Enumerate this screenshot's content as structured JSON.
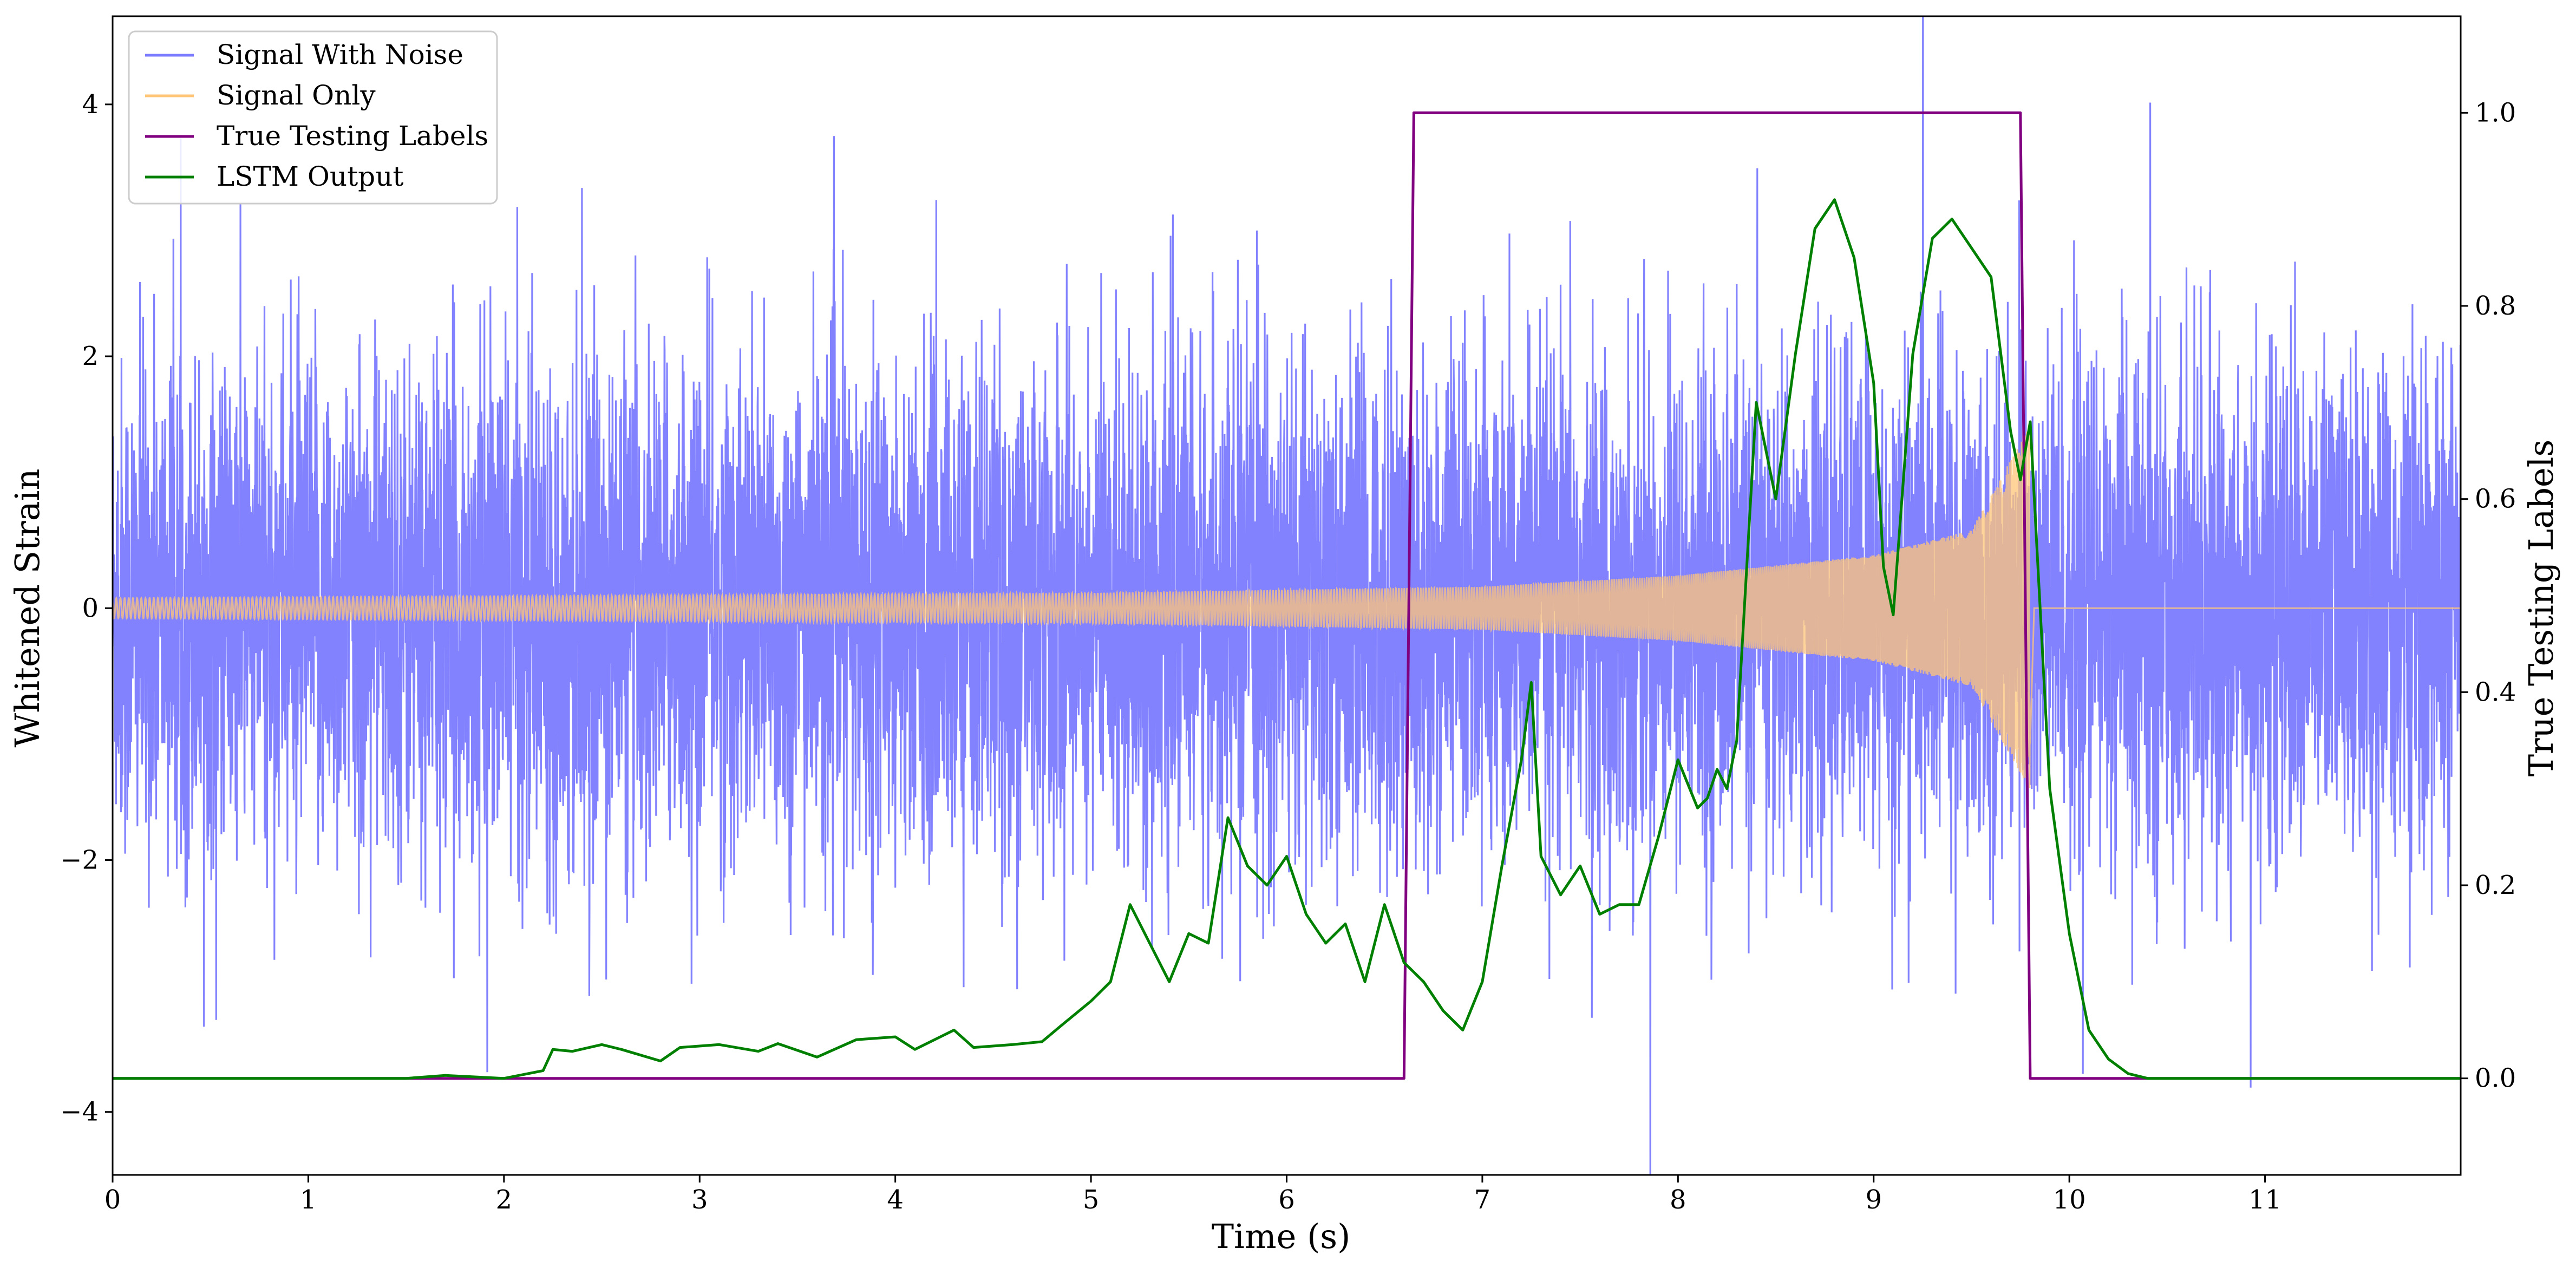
{
  "chart_data": {
    "type": "line",
    "xlabel": "Time (s)",
    "ylabel": "Whitened Strain",
    "y2label": "True Testing Labels",
    "xlim": [
      0,
      12
    ],
    "ylim": [
      -4.5,
      4.7
    ],
    "y2lim": [
      -0.1,
      1.1
    ],
    "x_ticks": [
      0,
      1,
      2,
      3,
      4,
      5,
      6,
      7,
      8,
      9,
      10,
      11
    ],
    "y_ticks": [
      -4,
      -2,
      0,
      2,
      4
    ],
    "y_tick_labels": [
      "−4",
      "−2",
      "0",
      "2",
      "4"
    ],
    "y2_ticks": [
      0.0,
      0.2,
      0.4,
      0.6,
      0.8,
      1.0
    ],
    "y2_tick_labels": [
      "0.0",
      "0.2",
      "0.4",
      "0.6",
      "0.8",
      "1.0"
    ],
    "grid": false,
    "legend_position": "top-left",
    "series": [
      {
        "name": "Signal With Noise",
        "axis": "left",
        "color": "#7b7bff",
        "kind": "noise",
        "std": 1.0,
        "x_range": [
          0,
          12
        ]
      },
      {
        "name": "Signal Only",
        "axis": "left",
        "color": "#ffc678",
        "kind": "chirp",
        "amplitude_envelope": [
          [
            0,
            0.08
          ],
          [
            5,
            0.12
          ],
          [
            7,
            0.17
          ],
          [
            8,
            0.26
          ],
          [
            9,
            0.42
          ],
          [
            9.5,
            0.62
          ],
          [
            9.8,
            1.45
          ],
          [
            9.82,
            0.0
          ],
          [
            12,
            0.0
          ]
        ]
      },
      {
        "name": "True Testing Labels",
        "axis": "right",
        "color": "#800080",
        "x": [
          0,
          6.6,
          6.65,
          9.75,
          9.8,
          12
        ],
        "y": [
          0,
          0,
          1,
          1,
          0,
          0
        ]
      },
      {
        "name": "LSTM Output",
        "axis": "right",
        "color": "#008000",
        "x": [
          0,
          1.0,
          1.5,
          1.7,
          2.0,
          2.2,
          2.25,
          2.35,
          2.5,
          2.6,
          2.8,
          2.9,
          3.1,
          3.3,
          3.4,
          3.6,
          3.8,
          4.0,
          4.1,
          4.3,
          4.4,
          4.6,
          4.75,
          4.85,
          5.0,
          5.1,
          5.2,
          5.3,
          5.4,
          5.5,
          5.6,
          5.7,
          5.8,
          5.9,
          6.0,
          6.1,
          6.2,
          6.3,
          6.4,
          6.5,
          6.6,
          6.7,
          6.8,
          6.9,
          7.0,
          7.1,
          7.2,
          7.25,
          7.3,
          7.4,
          7.5,
          7.6,
          7.7,
          7.8,
          7.9,
          8.0,
          8.1,
          8.15,
          8.2,
          8.25,
          8.3,
          8.4,
          8.5,
          8.6,
          8.7,
          8.8,
          8.9,
          9.0,
          9.05,
          9.1,
          9.2,
          9.3,
          9.4,
          9.5,
          9.6,
          9.7,
          9.75,
          9.8,
          9.9,
          10.0,
          10.1,
          10.2,
          10.3,
          10.4,
          10.5,
          11.0,
          12.0
        ],
        "y": [
          0.0,
          0.0,
          0.0,
          0.003,
          0.0,
          0.008,
          0.03,
          0.028,
          0.035,
          0.03,
          0.018,
          0.032,
          0.035,
          0.028,
          0.036,
          0.022,
          0.04,
          0.043,
          0.03,
          0.05,
          0.032,
          0.035,
          0.038,
          0.055,
          0.08,
          0.1,
          0.18,
          0.14,
          0.1,
          0.15,
          0.14,
          0.27,
          0.22,
          0.2,
          0.23,
          0.17,
          0.14,
          0.16,
          0.1,
          0.18,
          0.12,
          0.1,
          0.07,
          0.05,
          0.1,
          0.22,
          0.33,
          0.41,
          0.23,
          0.19,
          0.22,
          0.17,
          0.18,
          0.18,
          0.25,
          0.33,
          0.28,
          0.29,
          0.32,
          0.3,
          0.35,
          0.7,
          0.6,
          0.75,
          0.88,
          0.91,
          0.85,
          0.72,
          0.53,
          0.48,
          0.75,
          0.87,
          0.89,
          0.86,
          0.83,
          0.67,
          0.62,
          0.68,
          0.3,
          0.15,
          0.05,
          0.02,
          0.005,
          0.0,
          0.0,
          0.0,
          0.0
        ]
      }
    ]
  }
}
